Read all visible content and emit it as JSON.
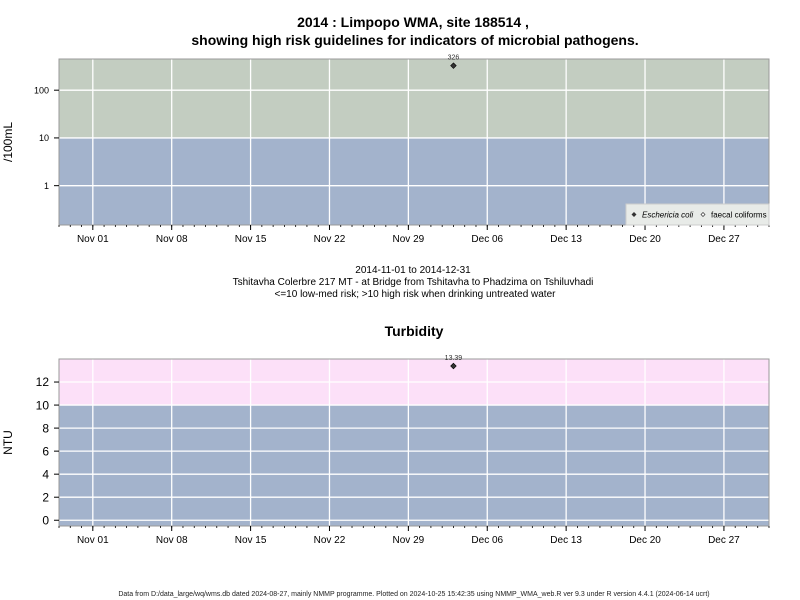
{
  "chart_data": [
    {
      "type": "scatter",
      "title_line1": "2014 : Limpopo WMA, site 188514 ,",
      "title_line2": "showing high risk guidelines for indicators of microbial pathogens.",
      "ylabel": "/100mL",
      "y_scale": "log",
      "ylim": [
        0.15,
        450
      ],
      "xlim": [
        "2014-10-29",
        "2014-12-31"
      ],
      "yticks": [
        1,
        10,
        100
      ],
      "ytick_labels": [
        "1",
        "10",
        "100"
      ],
      "xticks": [
        "2014-11-01",
        "2014-11-08",
        "2014-11-15",
        "2014-11-22",
        "2014-11-29",
        "2014-12-06",
        "2014-12-13",
        "2014-12-20",
        "2014-12-27"
      ],
      "xtick_labels": [
        "Nov 01",
        "Nov 08",
        "Nov 15",
        "Nov 22",
        "Nov 29",
        "Dec 06",
        "Dec 13",
        "Dec 20",
        "Dec 27"
      ],
      "bands": [
        {
          "from": 0.15,
          "to": 10,
          "color": "#a3b3cc"
        },
        {
          "from": 10,
          "to": 450,
          "color": "#c3cdc1"
        }
      ],
      "series": [
        {
          "name": "Eschericia coli",
          "marker": "filled-diamond",
          "points": [
            {
              "x": "2014-12-03",
              "y": 326,
              "label": "326"
            }
          ]
        },
        {
          "name": "faecal coliforms",
          "marker": "open-diamond",
          "points": []
        }
      ],
      "legend_position": "bottom-right",
      "grid": true,
      "caption_lines": [
        "2014-11-01 to 2014-12-31",
        "Tshitavha Colerbre 217 MT - at Bridge from Tshitavha to Phadzima on Tshiluvhadi",
        "<=10 low-med risk; >10 high risk when drinking untreated water"
      ]
    },
    {
      "type": "scatter",
      "title": "Turbidity",
      "ylabel": "NTU",
      "y_scale": "linear",
      "ylim": [
        -0.5,
        14
      ],
      "xlim": [
        "2014-10-29",
        "2014-12-31"
      ],
      "yticks": [
        0,
        2,
        4,
        6,
        8,
        10,
        12
      ],
      "ytick_labels": [
        "0",
        "2",
        "4",
        "6",
        "8",
        "10",
        "12"
      ],
      "xticks": [
        "2014-11-01",
        "2014-11-08",
        "2014-11-15",
        "2014-11-22",
        "2014-11-29",
        "2014-12-06",
        "2014-12-13",
        "2014-12-20",
        "2014-12-27"
      ],
      "xtick_labels": [
        "Nov 01",
        "Nov 08",
        "Nov 15",
        "Nov 22",
        "Nov 29",
        "Dec 06",
        "Dec 13",
        "Dec 20",
        "Dec 27"
      ],
      "bands": [
        {
          "from": -0.5,
          "to": 10,
          "color": "#a3b3cc"
        },
        {
          "from": 10,
          "to": 14,
          "color": "#fce0f8"
        }
      ],
      "series": [
        {
          "points": [
            {
              "x": "2014-12-03",
              "y": 13.39,
              "label": "13.39"
            }
          ]
        }
      ],
      "grid": true
    }
  ],
  "footer": "Data from D:/data_large/wq/wms.db dated 2024-08-27, mainly NMMP programme. Plotted on 2024-10-25 15:42:35 using NMMP_WMA_web.R ver 9.3 under R version 4.4.1 (2024-06-14 ucrt)"
}
